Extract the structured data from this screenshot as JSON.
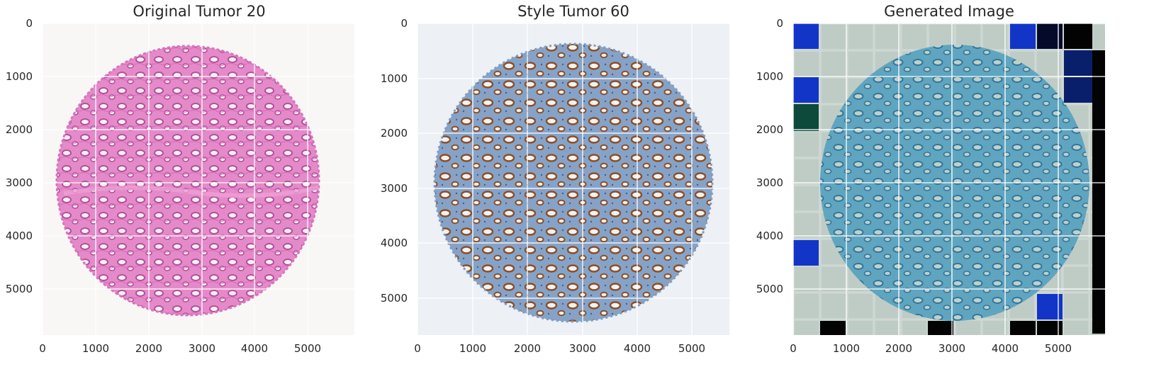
{
  "panels": [
    {
      "title": "Original Tumor 20",
      "image": "h-and-e-stained-tissue-core",
      "colors": {
        "background": "#f8f7f6",
        "tissue": "#e58ac9",
        "nuclei": "#b0509c",
        "lumen": "#fbf0f6"
      },
      "x_ticks": [
        "0",
        "1000",
        "2000",
        "3000",
        "4000",
        "5000"
      ],
      "y_ticks": [
        "0",
        "1000",
        "2000",
        "3000",
        "4000",
        "5000"
      ]
    },
    {
      "title": "Style Tumor 60",
      "image": "ihc-stained-tissue-core",
      "colors": {
        "background": "#edf0f4",
        "tissue": "#86a3c7",
        "nuclei": "#8a4f2a",
        "lumen": "#f6f2ee"
      },
      "x_ticks": [
        "0",
        "1000",
        "2000",
        "3000",
        "4000",
        "5000"
      ],
      "y_ticks": [
        "0",
        "1000",
        "2000",
        "3000",
        "4000",
        "5000"
      ]
    },
    {
      "title": "Generated Image",
      "image": "style-transferred-tissue-core",
      "colors": {
        "background": "#c7d3cb",
        "tissue": "#5aa3bf",
        "nuclei": "#2c6f98",
        "lumen": "#bdd2cc",
        "tile_dark": "#030303",
        "tile_blue": "#1235c8",
        "tile_green": "#0e4a3c"
      },
      "x_ticks": [
        "0",
        "1000",
        "2000",
        "3000",
        "4000",
        "5000"
      ],
      "y_ticks": [
        "0",
        "1000",
        "2000",
        "3000",
        "4000",
        "5000"
      ]
    }
  ]
}
